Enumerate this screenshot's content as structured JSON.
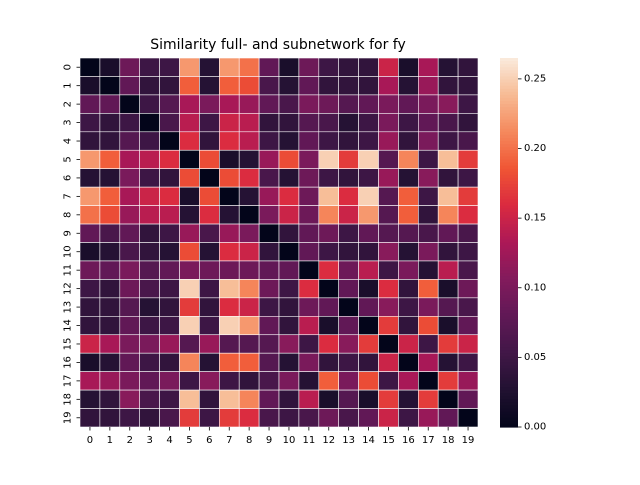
{
  "chart_data": {
    "type": "heatmap",
    "title": "Similarity full- and subnetwork for fy",
    "xlabel": "",
    "ylabel": "",
    "x_categories": [
      "0",
      "1",
      "2",
      "3",
      "4",
      "5",
      "6",
      "7",
      "8",
      "9",
      "10",
      "11",
      "12",
      "13",
      "14",
      "15",
      "16",
      "17",
      "18",
      "19"
    ],
    "y_categories": [
      "0",
      "1",
      "2",
      "3",
      "4",
      "5",
      "6",
      "7",
      "8",
      "9",
      "10",
      "11",
      "12",
      "13",
      "14",
      "15",
      "16",
      "17",
      "18",
      "19"
    ],
    "colorbar": {
      "range": [
        0,
        0.265
      ],
      "ticks": [
        0.0,
        0.05,
        0.1,
        0.15,
        0.2,
        0.25
      ],
      "tick_labels": [
        "0.00",
        "0.05",
        "0.10",
        "0.15",
        "0.20",
        "0.25"
      ],
      "colormap": "rocket"
    },
    "grid_line_color": "#ffffff",
    "values": [
      [
        0.0,
        0.02,
        0.09,
        0.05,
        0.05,
        0.22,
        0.03,
        0.22,
        0.2,
        0.08,
        0.02,
        0.09,
        0.05,
        0.04,
        0.04,
        0.15,
        0.02,
        0.13,
        0.03,
        0.04
      ],
      [
        0.02,
        0.0,
        0.08,
        0.04,
        0.04,
        0.19,
        0.03,
        0.19,
        0.18,
        0.06,
        0.03,
        0.08,
        0.04,
        0.04,
        0.04,
        0.13,
        0.03,
        0.12,
        0.04,
        0.04
      ],
      [
        0.08,
        0.08,
        0.0,
        0.05,
        0.07,
        0.13,
        0.1,
        0.13,
        0.12,
        0.08,
        0.06,
        0.1,
        0.09,
        0.07,
        0.08,
        0.1,
        0.08,
        0.1,
        0.11,
        0.05
      ],
      [
        0.05,
        0.04,
        0.05,
        0.0,
        0.06,
        0.14,
        0.05,
        0.15,
        0.14,
        0.04,
        0.04,
        0.07,
        0.06,
        0.03,
        0.05,
        0.1,
        0.05,
        0.08,
        0.06,
        0.04
      ],
      [
        0.04,
        0.04,
        0.07,
        0.05,
        0.0,
        0.16,
        0.04,
        0.16,
        0.14,
        0.05,
        0.03,
        0.08,
        0.05,
        0.04,
        0.05,
        0.12,
        0.04,
        0.1,
        0.05,
        0.06
      ],
      [
        0.22,
        0.19,
        0.13,
        0.14,
        0.16,
        0.0,
        0.18,
        0.02,
        0.03,
        0.12,
        0.18,
        0.1,
        0.25,
        0.17,
        0.25,
        0.07,
        0.21,
        0.05,
        0.24,
        0.17
      ],
      [
        0.03,
        0.03,
        0.1,
        0.05,
        0.04,
        0.18,
        0.0,
        0.18,
        0.16,
        0.06,
        0.03,
        0.09,
        0.05,
        0.04,
        0.05,
        0.12,
        0.03,
        0.11,
        0.04,
        0.05
      ],
      [
        0.22,
        0.19,
        0.13,
        0.15,
        0.16,
        0.02,
        0.18,
        0.0,
        0.03,
        0.12,
        0.16,
        0.09,
        0.24,
        0.16,
        0.25,
        0.07,
        0.19,
        0.05,
        0.24,
        0.17
      ],
      [
        0.2,
        0.18,
        0.12,
        0.14,
        0.14,
        0.03,
        0.16,
        0.03,
        0.0,
        0.1,
        0.15,
        0.09,
        0.21,
        0.15,
        0.22,
        0.07,
        0.19,
        0.04,
        0.21,
        0.16
      ],
      [
        0.08,
        0.06,
        0.08,
        0.04,
        0.05,
        0.12,
        0.06,
        0.12,
        0.1,
        0.0,
        0.04,
        0.08,
        0.09,
        0.05,
        0.08,
        0.07,
        0.07,
        0.06,
        0.08,
        0.06
      ],
      [
        0.02,
        0.03,
        0.06,
        0.04,
        0.03,
        0.18,
        0.03,
        0.16,
        0.15,
        0.04,
        0.0,
        0.08,
        0.05,
        0.04,
        0.04,
        0.11,
        0.03,
        0.1,
        0.04,
        0.05
      ],
      [
        0.09,
        0.08,
        0.1,
        0.07,
        0.08,
        0.1,
        0.09,
        0.09,
        0.09,
        0.08,
        0.08,
        0.0,
        0.16,
        0.09,
        0.14,
        0.05,
        0.1,
        0.03,
        0.14,
        0.06
      ],
      [
        0.05,
        0.04,
        0.09,
        0.06,
        0.05,
        0.25,
        0.05,
        0.24,
        0.21,
        0.09,
        0.05,
        0.16,
        0.0,
        0.08,
        0.02,
        0.16,
        0.04,
        0.19,
        0.02,
        0.09
      ],
      [
        0.04,
        0.04,
        0.07,
        0.03,
        0.04,
        0.17,
        0.04,
        0.16,
        0.15,
        0.05,
        0.04,
        0.09,
        0.08,
        0.0,
        0.08,
        0.11,
        0.05,
        0.1,
        0.07,
        0.06
      ],
      [
        0.04,
        0.04,
        0.08,
        0.05,
        0.05,
        0.25,
        0.05,
        0.25,
        0.22,
        0.08,
        0.04,
        0.14,
        0.02,
        0.08,
        0.0,
        0.17,
        0.04,
        0.18,
        0.02,
        0.08
      ],
      [
        0.15,
        0.13,
        0.1,
        0.1,
        0.12,
        0.07,
        0.12,
        0.07,
        0.07,
        0.07,
        0.11,
        0.05,
        0.16,
        0.11,
        0.17,
        0.0,
        0.15,
        0.05,
        0.17,
        0.15
      ],
      [
        0.02,
        0.03,
        0.08,
        0.05,
        0.04,
        0.21,
        0.03,
        0.19,
        0.19,
        0.07,
        0.03,
        0.1,
        0.04,
        0.05,
        0.04,
        0.15,
        0.0,
        0.13,
        0.03,
        0.05
      ],
      [
        0.13,
        0.12,
        0.1,
        0.08,
        0.1,
        0.05,
        0.11,
        0.05,
        0.04,
        0.06,
        0.1,
        0.03,
        0.19,
        0.1,
        0.18,
        0.05,
        0.13,
        0.0,
        0.17,
        0.12
      ],
      [
        0.03,
        0.04,
        0.11,
        0.06,
        0.05,
        0.24,
        0.04,
        0.24,
        0.21,
        0.08,
        0.04,
        0.14,
        0.02,
        0.07,
        0.02,
        0.17,
        0.03,
        0.17,
        0.0,
        0.08
      ],
      [
        0.04,
        0.04,
        0.05,
        0.04,
        0.06,
        0.17,
        0.05,
        0.17,
        0.16,
        0.06,
        0.05,
        0.06,
        0.09,
        0.06,
        0.08,
        0.15,
        0.05,
        0.12,
        0.08,
        0.0
      ]
    ]
  }
}
